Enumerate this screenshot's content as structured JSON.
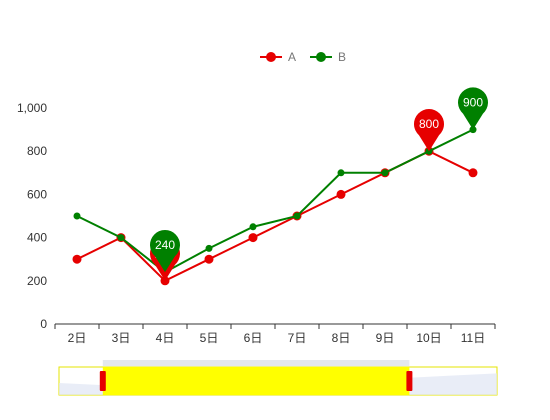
{
  "chart_data": {
    "type": "line",
    "title": "",
    "xlabel": "",
    "ylabel": "",
    "categories": [
      "2日",
      "3日",
      "4日",
      "5日",
      "6日",
      "7日",
      "8日",
      "9日",
      "10日",
      "11日"
    ],
    "ylim": [
      0,
      1000
    ],
    "yticks": [
      "0",
      "200",
      "400",
      "600",
      "800",
      "1,000"
    ],
    "y_tick_values": [
      0,
      200,
      400,
      600,
      800,
      1000
    ],
    "legend_position": "top-center",
    "grid": false,
    "series": [
      {
        "name": "A",
        "color": "#e60000",
        "values": [
          300,
          400,
          200,
          300,
          400,
          500,
          600,
          700,
          800,
          700
        ],
        "markers": [
          {
            "category": "4日",
            "value": 200,
            "label": "200"
          },
          {
            "category": "10日",
            "value": 800,
            "label": "800"
          }
        ]
      },
      {
        "name": "B",
        "color": "#008000",
        "values": [
          500,
          400,
          240,
          350,
          450,
          500,
          700,
          700,
          800,
          900
        ],
        "markers": [
          {
            "category": "4日",
            "value": 240,
            "label": "240"
          },
          {
            "category": "11日",
            "value": 900,
            "label": "900"
          }
        ]
      }
    ],
    "data_zoom": {
      "start_fraction": 0.1,
      "end_fraction": 0.8,
      "fill_color": "#ffff00",
      "handle_color": "#e60000",
      "border_color": "#e6e600"
    }
  }
}
